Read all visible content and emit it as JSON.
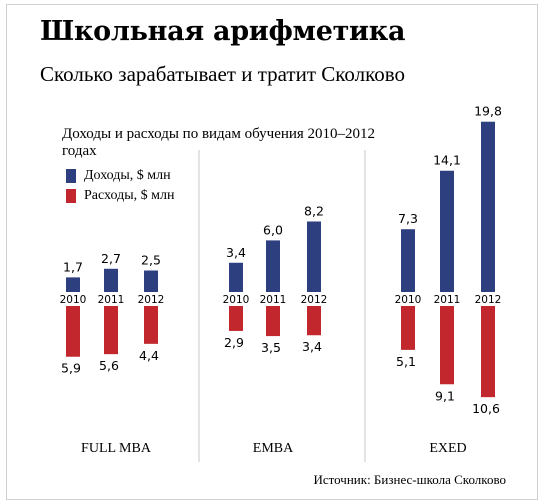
{
  "title": "Школьная арифметика",
  "subtitle": "Сколько зарабатывает и тратит Сколково",
  "source": "Источник: Бизнес-школа Сколково",
  "colors": {
    "income": "#2e3f80",
    "expense": "#c1272d"
  },
  "chart_data": {
    "type": "bar",
    "title": "Доходы и расходы по видам обучения 2010–2012 годах",
    "groups": [
      "FULL MBA",
      "EMBA",
      "EXED"
    ],
    "categories": [
      "2010",
      "2011",
      "2012"
    ],
    "series": [
      {
        "name": "Доходы, $ млн",
        "values": [
          [
            1.7,
            2.7,
            2.5
          ],
          [
            3.4,
            6.0,
            8.2
          ],
          [
            7.3,
            14.1,
            19.8
          ]
        ]
      },
      {
        "name": "Расходы, $ млн",
        "values": [
          [
            5.9,
            5.6,
            4.4
          ],
          [
            2.9,
            3.5,
            3.4
          ],
          [
            5.1,
            9.1,
            10.6
          ]
        ]
      }
    ],
    "labels": {
      "income": [
        [
          "1,7",
          "2,7",
          "2,5"
        ],
        [
          "3,4",
          "6,0",
          "8,2"
        ],
        [
          "7,3",
          "14,1",
          "19,8"
        ]
      ],
      "expense": [
        [
          "5,9",
          "5,6",
          "4,4"
        ],
        [
          "2,9",
          "3,5",
          "3,4"
        ],
        [
          "5,1",
          "9,1",
          "10,6"
        ]
      ]
    },
    "legend_position": "top-left"
  }
}
